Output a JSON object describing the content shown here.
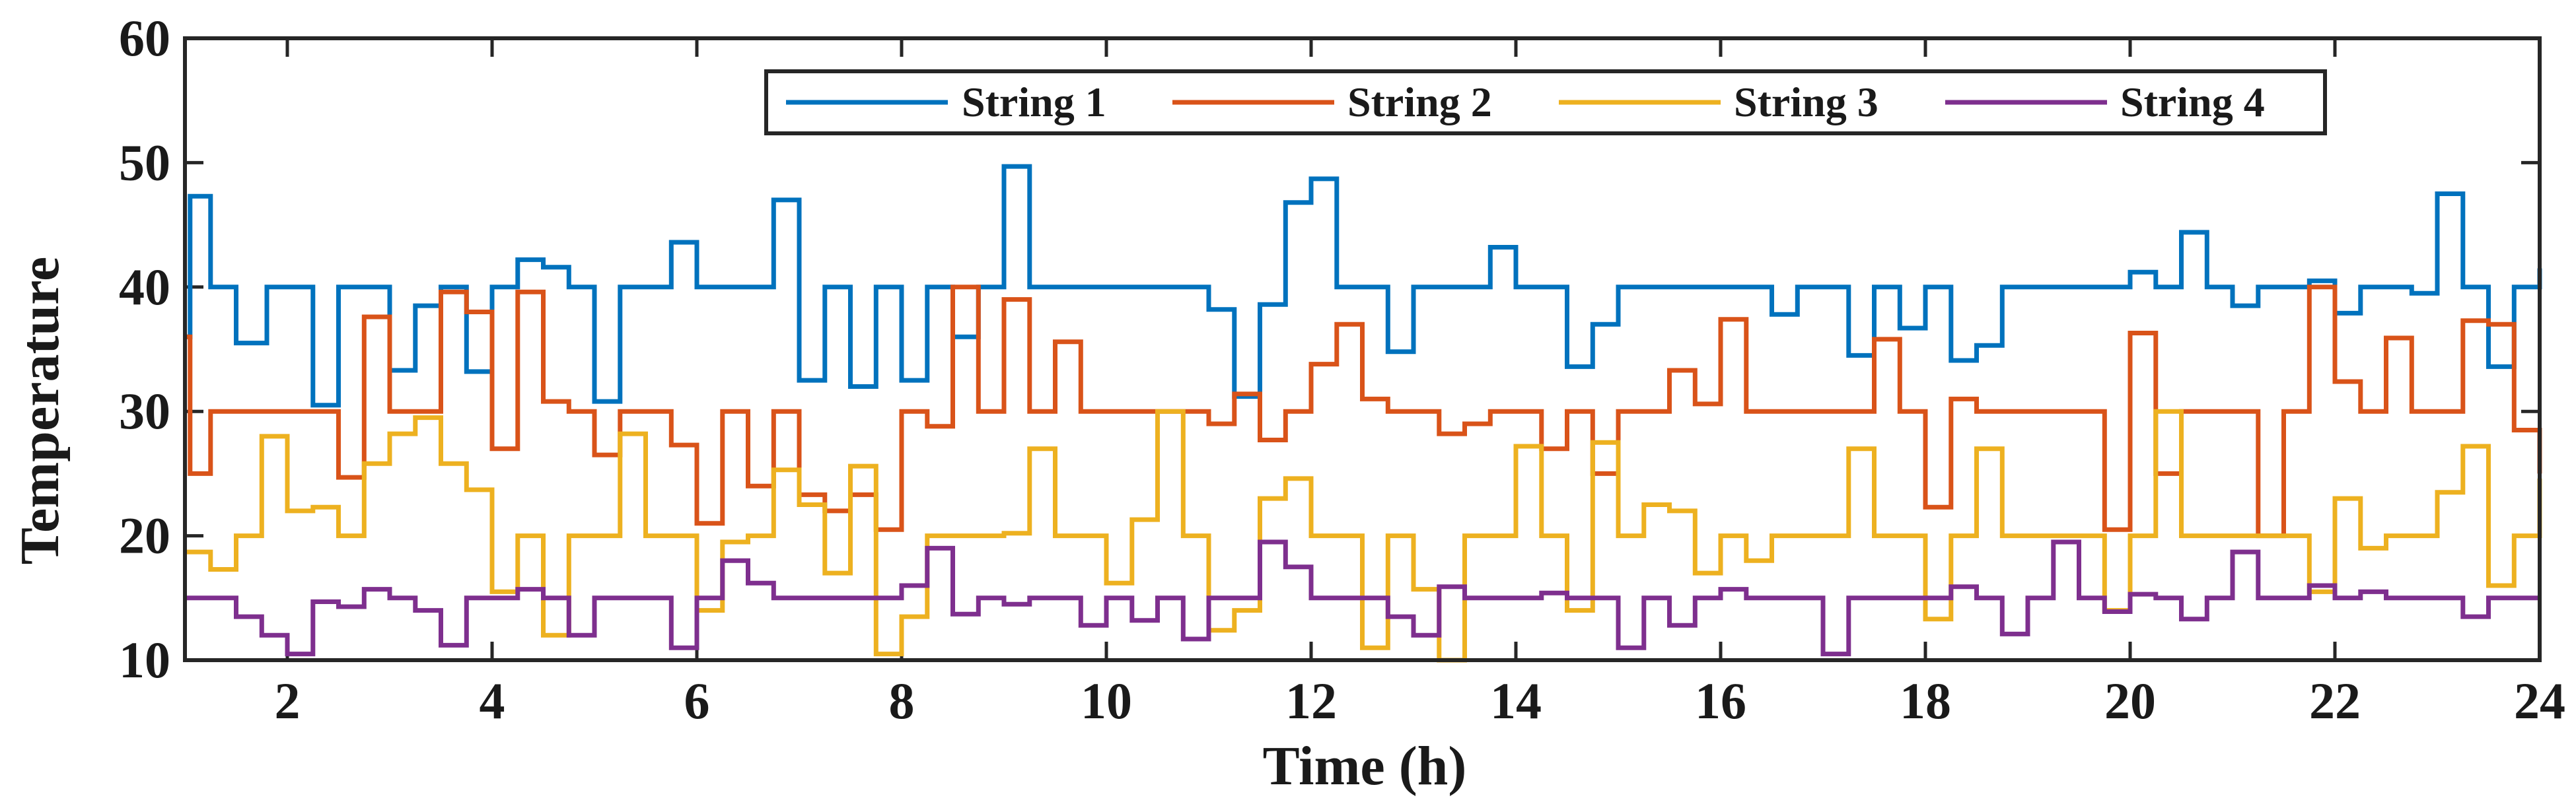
{
  "chart_data": {
    "type": "line",
    "step": true,
    "xlabel": "Time (h)",
    "ylabel": "Temperature",
    "xlim": [
      1,
      24
    ],
    "ylim": [
      10,
      60
    ],
    "xticks": [
      2,
      4,
      6,
      8,
      10,
      12,
      14,
      16,
      18,
      20,
      22,
      24
    ],
    "yticks": [
      10,
      20,
      30,
      40,
      50,
      60
    ],
    "xtick_labels": [
      "2",
      "4",
      "6",
      "8",
      "10",
      "12",
      "14",
      "16",
      "18",
      "20",
      "22",
      "24"
    ],
    "ytick_labels": [
      "10",
      "20",
      "30",
      "40",
      "50",
      "60"
    ],
    "legend_position": "top-right",
    "series": [
      {
        "name": "String 1",
        "color": "#0072BD",
        "points": [
          [
            1.0,
            36
          ],
          [
            1.05,
            47.3
          ],
          [
            1.25,
            40
          ],
          [
            1.5,
            35.5
          ],
          [
            1.8,
            40
          ],
          [
            2.25,
            30.5
          ],
          [
            2.5,
            40
          ],
          [
            3.0,
            33.3
          ],
          [
            3.25,
            38.5
          ],
          [
            3.5,
            40
          ],
          [
            3.75,
            33.2
          ],
          [
            4.0,
            40
          ],
          [
            4.25,
            42.2
          ],
          [
            4.5,
            41.6
          ],
          [
            4.75,
            40
          ],
          [
            5.0,
            30.8
          ],
          [
            5.25,
            40
          ],
          [
            5.75,
            43.6
          ],
          [
            6.0,
            40
          ],
          [
            6.75,
            47
          ],
          [
            7.0,
            32.5
          ],
          [
            7.25,
            40
          ],
          [
            7.5,
            32
          ],
          [
            7.75,
            40
          ],
          [
            8.0,
            32.5
          ],
          [
            8.25,
            40
          ],
          [
            8.5,
            36
          ],
          [
            8.75,
            40
          ],
          [
            9.0,
            49.7
          ],
          [
            9.25,
            40
          ],
          [
            11.0,
            38.2
          ],
          [
            11.25,
            31.2
          ],
          [
            11.5,
            38.6
          ],
          [
            11.75,
            46.8
          ],
          [
            12.0,
            48.7
          ],
          [
            12.25,
            40
          ],
          [
            12.75,
            34.8
          ],
          [
            13.0,
            40
          ],
          [
            13.75,
            43.2
          ],
          [
            14.0,
            40
          ],
          [
            14.5,
            33.6
          ],
          [
            14.75,
            37
          ],
          [
            15.0,
            40
          ],
          [
            16.5,
            37.8
          ],
          [
            16.75,
            40
          ],
          [
            17.25,
            34.5
          ],
          [
            17.5,
            40
          ],
          [
            17.75,
            36.7
          ],
          [
            18.0,
            40
          ],
          [
            18.25,
            34.1
          ],
          [
            18.5,
            35.3
          ],
          [
            18.75,
            40
          ],
          [
            20.0,
            41.2
          ],
          [
            20.25,
            40
          ],
          [
            20.5,
            44.4
          ],
          [
            20.75,
            40
          ],
          [
            21.0,
            38.5
          ],
          [
            21.25,
            40
          ],
          [
            21.75,
            40.5
          ],
          [
            22.0,
            37.9
          ],
          [
            22.25,
            40
          ],
          [
            22.75,
            39.5
          ],
          [
            23.0,
            47.5
          ],
          [
            23.25,
            40
          ],
          [
            23.5,
            33.6
          ],
          [
            23.75,
            40
          ],
          [
            24.0,
            41.5
          ]
        ]
      },
      {
        "name": "String 2",
        "color": "#D95319",
        "points": [
          [
            1.0,
            36
          ],
          [
            1.05,
            25
          ],
          [
            1.25,
            30
          ],
          [
            2.5,
            24.7
          ],
          [
            2.75,
            37.6
          ],
          [
            3.0,
            30
          ],
          [
            3.5,
            39.6
          ],
          [
            3.75,
            38
          ],
          [
            4.0,
            27
          ],
          [
            4.25,
            39.6
          ],
          [
            4.5,
            30.8
          ],
          [
            4.75,
            30
          ],
          [
            5.0,
            26.5
          ],
          [
            5.25,
            30
          ],
          [
            5.75,
            27.3
          ],
          [
            6.0,
            21
          ],
          [
            6.25,
            30
          ],
          [
            6.5,
            24
          ],
          [
            6.75,
            30
          ],
          [
            7.0,
            23.3
          ],
          [
            7.25,
            22
          ],
          [
            7.5,
            23.3
          ],
          [
            7.75,
            20.5
          ],
          [
            8.0,
            30
          ],
          [
            8.25,
            28.8
          ],
          [
            8.5,
            40
          ],
          [
            8.75,
            30
          ],
          [
            9.0,
            39
          ],
          [
            9.25,
            30
          ],
          [
            9.5,
            35.6
          ],
          [
            9.75,
            30
          ],
          [
            11.0,
            29
          ],
          [
            11.25,
            31.4
          ],
          [
            11.5,
            27.7
          ],
          [
            11.75,
            30
          ],
          [
            12.0,
            33.8
          ],
          [
            12.25,
            37
          ],
          [
            12.5,
            31
          ],
          [
            12.75,
            30
          ],
          [
            13.25,
            28.2
          ],
          [
            13.5,
            29
          ],
          [
            13.75,
            30
          ],
          [
            14.25,
            27
          ],
          [
            14.5,
            30
          ],
          [
            14.75,
            25
          ],
          [
            15.0,
            30
          ],
          [
            15.5,
            33.3
          ],
          [
            15.75,
            30.6
          ],
          [
            16.0,
            37.4
          ],
          [
            16.25,
            30
          ],
          [
            17.5,
            35.8
          ],
          [
            17.75,
            30
          ],
          [
            18.0,
            22.3
          ],
          [
            18.25,
            31
          ],
          [
            18.5,
            30
          ],
          [
            19.75,
            20.5
          ],
          [
            20.0,
            36.3
          ],
          [
            20.25,
            25
          ],
          [
            20.5,
            30
          ],
          [
            21.25,
            20
          ],
          [
            21.5,
            30
          ],
          [
            21.75,
            40
          ],
          [
            22.0,
            32.4
          ],
          [
            22.25,
            30
          ],
          [
            22.5,
            35.9
          ],
          [
            22.75,
            30
          ],
          [
            23.25,
            37.3
          ],
          [
            23.5,
            37
          ],
          [
            23.75,
            28.5
          ],
          [
            24.0,
            25
          ]
        ]
      },
      {
        "name": "String 3",
        "color": "#EDB120",
        "points": [
          [
            1.0,
            18.7
          ],
          [
            1.25,
            17.3
          ],
          [
            1.5,
            20
          ],
          [
            1.75,
            28
          ],
          [
            2.0,
            22
          ],
          [
            2.25,
            22.3
          ],
          [
            2.5,
            20
          ],
          [
            2.75,
            25.8
          ],
          [
            3.0,
            28.2
          ],
          [
            3.25,
            29.5
          ],
          [
            3.5,
            25.8
          ],
          [
            3.75,
            23.7
          ],
          [
            4.0,
            15.5
          ],
          [
            4.25,
            20
          ],
          [
            4.5,
            12
          ],
          [
            4.75,
            20
          ],
          [
            5.25,
            28.2
          ],
          [
            5.5,
            20
          ],
          [
            6.0,
            14
          ],
          [
            6.25,
            19.5
          ],
          [
            6.5,
            20
          ],
          [
            6.75,
            25.3
          ],
          [
            7.0,
            22.5
          ],
          [
            7.25,
            17
          ],
          [
            7.5,
            25.6
          ],
          [
            7.75,
            10.5
          ],
          [
            8.0,
            13.5
          ],
          [
            8.25,
            20
          ],
          [
            9.0,
            20.2
          ],
          [
            9.25,
            27
          ],
          [
            9.5,
            20
          ],
          [
            10.0,
            16.2
          ],
          [
            10.25,
            21.3
          ],
          [
            10.5,
            30
          ],
          [
            10.75,
            20
          ],
          [
            11.0,
            12.4
          ],
          [
            11.25,
            14
          ],
          [
            11.5,
            23
          ],
          [
            11.75,
            24.6
          ],
          [
            12.0,
            20
          ],
          [
            12.5,
            11
          ],
          [
            12.75,
            20
          ],
          [
            13.0,
            15.7
          ],
          [
            13.25,
            10
          ],
          [
            13.5,
            20
          ],
          [
            14.0,
            27.2
          ],
          [
            14.25,
            20
          ],
          [
            14.5,
            14
          ],
          [
            14.75,
            27.5
          ],
          [
            15.0,
            20
          ],
          [
            15.25,
            22.5
          ],
          [
            15.5,
            22
          ],
          [
            15.75,
            17
          ],
          [
            16.0,
            20
          ],
          [
            16.25,
            18
          ],
          [
            16.5,
            20
          ],
          [
            17.25,
            27
          ],
          [
            17.5,
            20
          ],
          [
            18.0,
            13.3
          ],
          [
            18.25,
            20
          ],
          [
            18.5,
            27
          ],
          [
            18.75,
            20
          ],
          [
            19.75,
            14
          ],
          [
            20.0,
            20
          ],
          [
            20.25,
            30
          ],
          [
            20.5,
            20
          ],
          [
            21.75,
            15.5
          ],
          [
            22.0,
            23
          ],
          [
            22.25,
            19
          ],
          [
            22.5,
            20
          ],
          [
            23.0,
            23.5
          ],
          [
            23.25,
            27.2
          ],
          [
            23.5,
            16
          ],
          [
            23.75,
            20
          ],
          [
            24.0,
            24.6
          ]
        ]
      },
      {
        "name": "String 4",
        "color": "#7E2F8E",
        "points": [
          [
            1.0,
            15
          ],
          [
            1.5,
            13.5
          ],
          [
            1.75,
            12
          ],
          [
            2.0,
            10.5
          ],
          [
            2.25,
            14.7
          ],
          [
            2.5,
            14.3
          ],
          [
            2.75,
            15.7
          ],
          [
            3.0,
            15
          ],
          [
            3.25,
            14
          ],
          [
            3.5,
            11.2
          ],
          [
            3.75,
            15
          ],
          [
            4.25,
            15.7
          ],
          [
            4.5,
            15
          ],
          [
            4.75,
            12
          ],
          [
            5.0,
            15
          ],
          [
            5.75,
            11
          ],
          [
            6.0,
            15
          ],
          [
            6.25,
            18
          ],
          [
            6.5,
            16.2
          ],
          [
            6.75,
            15
          ],
          [
            7.25,
            15
          ],
          [
            8.0,
            16
          ],
          [
            8.25,
            19
          ],
          [
            8.5,
            13.7
          ],
          [
            8.75,
            15
          ],
          [
            9.0,
            14.5
          ],
          [
            9.25,
            15
          ],
          [
            9.75,
            12.8
          ],
          [
            10.0,
            15
          ],
          [
            10.25,
            13.2
          ],
          [
            10.5,
            15
          ],
          [
            10.75,
            11.7
          ],
          [
            11.0,
            15
          ],
          [
            11.25,
            15
          ],
          [
            11.5,
            19.5
          ],
          [
            11.75,
            17.5
          ],
          [
            12.0,
            15
          ],
          [
            12.75,
            13.5
          ],
          [
            13.0,
            12
          ],
          [
            13.25,
            15.9
          ],
          [
            13.5,
            15
          ],
          [
            14.25,
            15.4
          ],
          [
            14.5,
            15
          ],
          [
            15.0,
            11
          ],
          [
            15.25,
            15
          ],
          [
            15.5,
            12.8
          ],
          [
            15.75,
            15
          ],
          [
            16.0,
            15.7
          ],
          [
            16.25,
            15
          ],
          [
            17.0,
            10.5
          ],
          [
            17.25,
            15
          ],
          [
            18.25,
            15.9
          ],
          [
            18.5,
            15
          ],
          [
            18.75,
            12.1
          ],
          [
            19.0,
            15
          ],
          [
            19.25,
            19.5
          ],
          [
            19.5,
            15
          ],
          [
            19.75,
            13.9
          ],
          [
            20.0,
            15.3
          ],
          [
            20.25,
            15
          ],
          [
            20.5,
            13.3
          ],
          [
            20.75,
            15
          ],
          [
            21.0,
            18.7
          ],
          [
            21.25,
            15
          ],
          [
            21.75,
            16
          ],
          [
            22.0,
            15
          ],
          [
            22.25,
            15.5
          ],
          [
            22.5,
            15
          ],
          [
            23.25,
            13.5
          ],
          [
            23.5,
            15
          ],
          [
            24.0,
            15
          ]
        ]
      }
    ]
  }
}
